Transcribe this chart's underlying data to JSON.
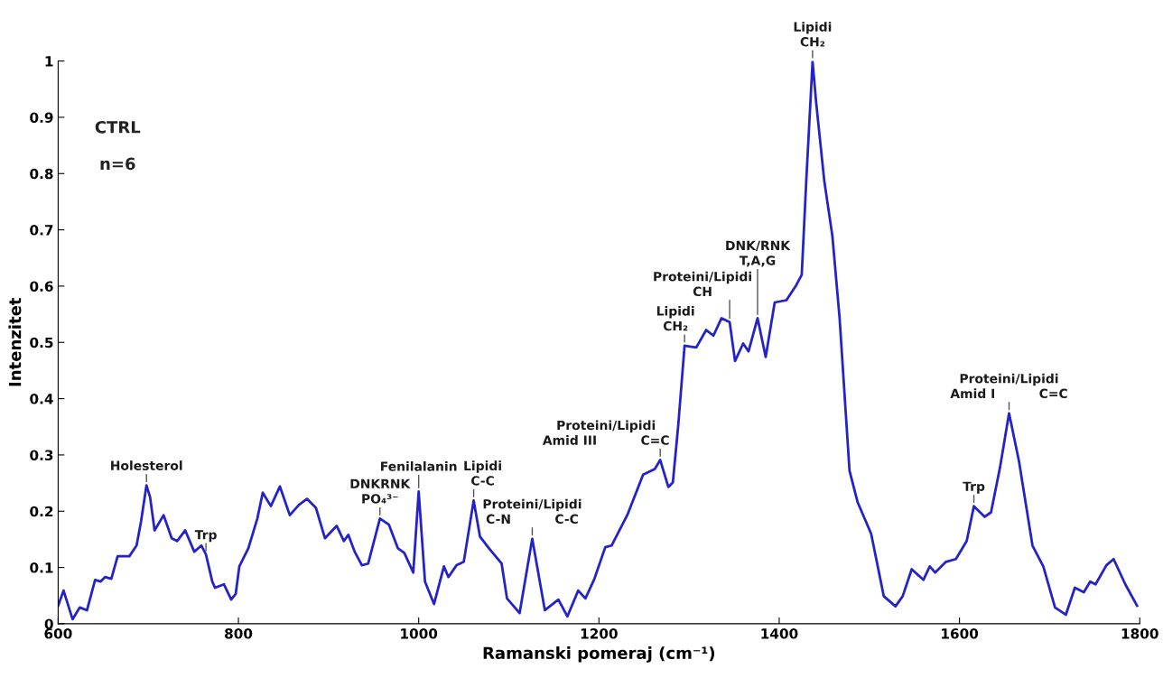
{
  "chart_data": {
    "type": "line",
    "xlabel": "Ramanski pomeraj (cm⁻¹)",
    "ylabel": "Intenzitet",
    "xlim": [
      600,
      1800
    ],
    "ylim": [
      0,
      1
    ],
    "xticks": [
      600,
      800,
      1000,
      1200,
      1400,
      1600,
      1800
    ],
    "yticks": [
      0,
      0.1,
      0.2,
      0.3,
      0.4,
      0.5,
      0.6,
      0.7,
      0.8,
      0.9,
      1
    ],
    "grid": false,
    "legend": false,
    "marker": "none",
    "line_style": "solid",
    "series": [
      {
        "color": "#2323c8",
        "x": [
          600,
          606,
          616,
          624,
          632,
          641,
          647,
          652,
          659,
          666,
          679,
          687,
          692,
          698,
          702,
          707,
          717,
          726,
          732,
          741,
          751,
          759,
          764,
          771,
          774,
          784,
          792,
          797,
          801,
          811,
          821,
          827,
          836,
          846,
          857,
          867,
          876,
          886,
          896,
          909,
          917,
          922,
          929,
          937,
          944,
          957,
          967,
          977,
          984,
          994,
          1000,
          1007,
          1017,
          1028,
          1033,
          1042,
          1050,
          1061,
          1068,
          1078,
          1092,
          1098,
          1112,
          1126,
          1140,
          1155,
          1165,
          1177,
          1185,
          1195,
          1207,
          1214,
          1232,
          1249,
          1262,
          1268,
          1277,
          1282,
          1288,
          1295,
          1308,
          1319,
          1327,
          1336,
          1345,
          1351,
          1360,
          1366,
          1376,
          1385,
          1395,
          1408,
          1419,
          1425,
          1430,
          1437,
          1441,
          1450,
          1459,
          1467,
          1478,
          1487,
          1502,
          1516,
          1529,
          1537,
          1547,
          1560,
          1567,
          1573,
          1585,
          1596,
          1608,
          1616,
          1628,
          1635,
          1645,
          1655,
          1666,
          1681,
          1693,
          1706,
          1718,
          1728,
          1738,
          1745,
          1751,
          1763,
          1771,
          1784,
          1797
        ],
        "values": [
          0.032,
          0.059,
          0.008,
          0.029,
          0.024,
          0.078,
          0.075,
          0.083,
          0.08,
          0.12,
          0.12,
          0.139,
          0.182,
          0.246,
          0.225,
          0.166,
          0.193,
          0.152,
          0.147,
          0.166,
          0.128,
          0.139,
          0.123,
          0.075,
          0.064,
          0.07,
          0.043,
          0.053,
          0.102,
          0.134,
          0.187,
          0.233,
          0.209,
          0.244,
          0.193,
          0.211,
          0.222,
          0.206,
          0.152,
          0.174,
          0.147,
          0.158,
          0.128,
          0.104,
          0.107,
          0.187,
          0.176,
          0.134,
          0.126,
          0.091,
          0.235,
          0.075,
          0.035,
          0.102,
          0.083,
          0.104,
          0.11,
          0.219,
          0.155,
          0.134,
          0.107,
          0.045,
          0.019,
          0.151,
          0.024,
          0.043,
          0.013,
          0.059,
          0.045,
          0.08,
          0.136,
          0.139,
          0.195,
          0.265,
          0.275,
          0.291,
          0.243,
          0.251,
          0.353,
          0.494,
          0.491,
          0.522,
          0.512,
          0.543,
          0.536,
          0.467,
          0.498,
          0.484,
          0.543,
          0.474,
          0.571,
          0.575,
          0.602,
          0.62,
          0.787,
          0.999,
          0.926,
          0.787,
          0.689,
          0.543,
          0.272,
          0.216,
          0.16,
          0.049,
          0.031,
          0.049,
          0.097,
          0.078,
          0.102,
          0.091,
          0.11,
          0.115,
          0.147,
          0.209,
          0.19,
          0.198,
          0.278,
          0.374,
          0.289,
          0.139,
          0.102,
          0.029,
          0.016,
          0.064,
          0.056,
          0.075,
          0.07,
          0.104,
          0.115,
          0.07,
          0.032
        ]
      }
    ],
    "annotations": [
      "CTRL",
      "n=6",
      {
        "text": "Holesterol",
        "x": 698,
        "y": 0.246
      },
      {
        "text": "Trp",
        "x": 764,
        "y": 0.123
      },
      {
        "text": "DNKRNK\nPO₄³⁻",
        "x": 957,
        "y": 0.187
      },
      {
        "text": "Fenilalanin",
        "x": 1000,
        "y": 0.235
      },
      {
        "text": "Lipidi\nC-C",
        "x": 1061,
        "y": 0.219
      },
      {
        "text": "Proteini/Lipidi\nC-N          C-C",
        "x": 1126,
        "y": 0.151
      },
      {
        "text": "Proteini/Lipidi\nAmid III          C=C",
        "x": 1268,
        "y": 0.291
      },
      {
        "text": "Lipidi\nCH₂",
        "x": 1295,
        "y": 0.494
      },
      {
        "text": "Proteini/Lipidi\nCH",
        "x": 1345,
        "y": 0.536
      },
      {
        "text": "DNK/RNK\nT,A,G",
        "x": 1376,
        "y": 0.543
      },
      {
        "text": "Lipidi\nCH₂",
        "x": 1437,
        "y": 0.999
      },
      {
        "text": "Trp",
        "x": 1616,
        "y": 0.209
      },
      {
        "text": "Proteini/Lipidi\nAmid I          C=C",
        "x": 1655,
        "y": 0.374
      }
    ]
  }
}
